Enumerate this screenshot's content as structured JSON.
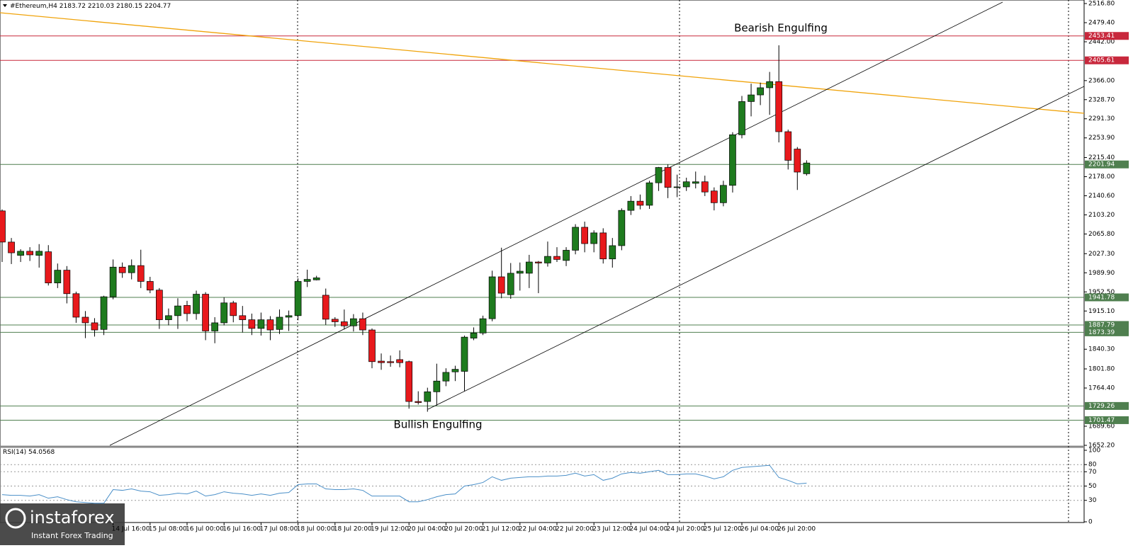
{
  "chart_data": [
    {
      "type": "candlestick",
      "symbol": "#Ethereum,H4",
      "ohlc": [
        [
          2111,
          2114,
          2011,
          2050
        ],
        [
          2050,
          2058,
          2007,
          2029
        ],
        [
          2024,
          2036,
          2011,
          2032
        ],
        [
          2032,
          2040,
          2013,
          2025
        ],
        [
          2024,
          2046,
          2000,
          2032
        ],
        [
          2031,
          2044,
          1965,
          1970
        ],
        [
          1970,
          2008,
          1960,
          1995
        ],
        [
          1995,
          2003,
          1930,
          1949
        ],
        [
          1949,
          1953,
          1892,
          1903
        ],
        [
          1903,
          1915,
          1862,
          1892
        ],
        [
          1892,
          1901,
          1865,
          1878
        ],
        [
          1879,
          1945,
          1868,
          1943
        ],
        [
          1943,
          2016,
          1938,
          2001
        ],
        [
          2001,
          2010,
          1980,
          1990
        ],
        [
          1990,
          2016,
          1977,
          2004
        ],
        [
          2004,
          2035,
          1960,
          1973
        ],
        [
          1973,
          1982,
          1950,
          1956
        ],
        [
          1956,
          1960,
          1880,
          1898
        ],
        [
          1898,
          1920,
          1887,
          1906
        ],
        [
          1906,
          1940,
          1880,
          1925
        ],
        [
          1926,
          1935,
          1895,
          1910
        ],
        [
          1910,
          1955,
          1898,
          1948
        ],
        [
          1948,
          1952,
          1858,
          1876
        ],
        [
          1876,
          1903,
          1852,
          1892
        ],
        [
          1892,
          1942,
          1887,
          1931
        ],
        [
          1931,
          1935,
          1893,
          1906
        ],
        [
          1906,
          1925,
          1873,
          1898
        ],
        [
          1898,
          1910,
          1868,
          1881
        ],
        [
          1881,
          1912,
          1867,
          1898
        ],
        [
          1898,
          1905,
          1858,
          1878
        ],
        [
          1879,
          1918,
          1870,
          1903
        ],
        [
          1903,
          1916,
          1876,
          1906
        ],
        [
          1906,
          1979,
          1897,
          1973
        ],
        [
          1973,
          1996,
          1962,
          1977
        ],
        [
          1976,
          1984,
          1975,
          1980
        ],
        [
          1946,
          1959,
          1888,
          1899
        ],
        [
          1899,
          1903,
          1884,
          1894
        ],
        [
          1894,
          1918,
          1879,
          1886
        ],
        [
          1886,
          1909,
          1875,
          1900
        ],
        [
          1900,
          1912,
          1868,
          1878
        ],
        [
          1878,
          1881,
          1803,
          1816
        ],
        [
          1817,
          1832,
          1800,
          1814
        ],
        [
          1816,
          1828,
          1806,
          1814
        ],
        [
          1820,
          1838,
          1805,
          1814
        ],
        [
          1816,
          1818,
          1724,
          1738
        ],
        [
          1738,
          1758,
          1732,
          1736
        ],
        [
          1738,
          1765,
          1718,
          1757
        ],
        [
          1757,
          1812,
          1730,
          1778
        ],
        [
          1778,
          1803,
          1768,
          1795
        ],
        [
          1796,
          1808,
          1778,
          1801
        ],
        [
          1797,
          1867,
          1758,
          1864
        ],
        [
          1862,
          1883,
          1858,
          1872
        ],
        [
          1872,
          1906,
          1868,
          1900
        ],
        [
          1900,
          1994,
          1895,
          1982
        ],
        [
          1982,
          2039,
          1940,
          1950
        ],
        [
          1947,
          2009,
          1939,
          1989
        ],
        [
          1989,
          2010,
          1955,
          1993
        ],
        [
          1989,
          2025,
          1960,
          2011
        ],
        [
          2011,
          2013,
          1950,
          2009
        ],
        [
          2009,
          2051,
          2002,
          2022
        ],
        [
          2022,
          2040,
          2011,
          2016
        ],
        [
          2014,
          2040,
          2003,
          2034
        ],
        [
          2034,
          2085,
          2026,
          2079
        ],
        [
          2079,
          2090,
          2030,
          2047
        ],
        [
          2047,
          2073,
          2030,
          2068
        ],
        [
          2068,
          2077,
          2008,
          2017
        ],
        [
          2017,
          2058,
          2000,
          2043
        ],
        [
          2043,
          2116,
          2034,
          2112
        ],
        [
          2112,
          2140,
          2103,
          2130
        ],
        [
          2130,
          2143,
          2114,
          2122
        ],
        [
          2122,
          2170,
          2115,
          2166
        ],
        [
          2166,
          2197,
          2150,
          2196
        ],
        [
          2196,
          2202,
          2136,
          2157
        ],
        [
          2158,
          2182,
          2138,
          2158
        ],
        [
          2158,
          2176,
          2150,
          2168
        ],
        [
          2165,
          2188,
          2155,
          2168
        ],
        [
          2168,
          2180,
          2140,
          2148
        ],
        [
          2150,
          2157,
          2112,
          2127
        ],
        [
          2127,
          2170,
          2120,
          2161
        ],
        [
          2161,
          2265,
          2147,
          2260
        ],
        [
          2260,
          2336,
          2253,
          2325
        ],
        [
          2325,
          2360,
          2296,
          2338
        ],
        [
          2338,
          2362,
          2318,
          2352
        ],
        [
          2352,
          2383,
          2299,
          2364
        ],
        [
          2364,
          2435,
          2245,
          2266
        ],
        [
          2266,
          2270,
          2192,
          2210
        ],
        [
          2232,
          2236,
          2152,
          2187
        ],
        [
          2183.72,
          2210.03,
          2180.15,
          2204.77
        ]
      ],
      "categories": [
        null,
        null,
        null,
        null,
        null,
        null,
        null,
        null,
        null,
        null,
        null,
        null,
        "14 Jul 16:00",
        null,
        null,
        null,
        "15 Jul 08:00",
        null,
        null,
        null,
        "16 Jul 00:00",
        null,
        null,
        null,
        "16 Jul 16:00",
        null,
        null,
        null,
        "17 Jul 08:00",
        null,
        null,
        null,
        "18 Jul 00:00",
        null,
        null,
        null,
        "18 Jul 20:00",
        null,
        null,
        null,
        "19 Jul 12:00",
        null,
        null,
        null,
        "20 Jul 04:00",
        null,
        null,
        null,
        "20 Jul 20:00",
        null,
        null,
        null,
        "21 Jul 12:00",
        null,
        null,
        null,
        "22 Jul 04:00",
        null,
        null,
        null,
        "22 Jul 20:00",
        null,
        null,
        null,
        "23 Jul 12:00",
        null,
        null,
        null,
        "24 Jul 04:00",
        null,
        null,
        null,
        "24 Jul 20:00",
        null,
        null,
        null,
        "25 Jul 12:00",
        null,
        null,
        null,
        "26 Jul 04:00",
        null,
        null,
        null,
        "26 Jul 20:00",
        null,
        null,
        null
      ],
      "up_color": "#1e7b1e",
      "down_color": "#e8191c",
      "ylim": [
        1652.2,
        2516.8
      ],
      "yticks": [
        {
          "value": 2516.8,
          "label": "2516.80"
        },
        {
          "value": 2479.4,
          "label": "2479.40"
        },
        {
          "value": 2442,
          "label": "2442.00"
        },
        {
          "value": 2366,
          "label": "2366.00"
        },
        {
          "value": 2328.7,
          "label": "2328.70"
        },
        {
          "value": 2291.3,
          "label": "2291.30"
        },
        {
          "value": 2253.9,
          "label": "2253.90"
        },
        {
          "value": 2215.4,
          "label": "2215.40"
        },
        {
          "value": 2178,
          "label": "2178.00"
        },
        {
          "value": 2140.6,
          "label": "2140.60"
        },
        {
          "value": 2103.2,
          "label": "2103.20"
        },
        {
          "value": 2065.8,
          "label": "2065.80"
        },
        {
          "value": 2027.3,
          "label": "2027.30"
        },
        {
          "value": 1989.9,
          "label": "1989.90"
        },
        {
          "value": 1952.5,
          "label": "1952.50"
        },
        {
          "value": 1915.1,
          "label": "1915.10"
        },
        {
          "value": 1840.3,
          "label": "1840.30"
        },
        {
          "value": 1801.8,
          "label": "1801.80"
        },
        {
          "value": 1764.4,
          "label": "1764.40"
        },
        {
          "value": 1689.6,
          "label": "1689.60"
        },
        {
          "value": 1652.2,
          "label": "1652.20"
        }
      ],
      "levels": [
        2453.41,
        2405.61,
        2201.94,
        1941.78,
        1887.79,
        1873.39,
        1729.26,
        1701.47
      ],
      "level_colors": [
        "#c8283c",
        "#c8283c",
        "#4f7f4f",
        "#4f7f4f",
        "#4f7f4f",
        "#4f7f4f",
        "#4f7f4f",
        "#4f7f4f"
      ],
      "annotations": [
        "Bearish Engulfing",
        "Bullish Engulfing"
      ]
    },
    {
      "type": "line",
      "name": "RSI(14)",
      "color": "#4a8fc8",
      "values": [
        38,
        37,
        37,
        36,
        38,
        33,
        35,
        31,
        28,
        27,
        26,
        26,
        45,
        44,
        46,
        43,
        42,
        37,
        38,
        40,
        39,
        43,
        36,
        38,
        42,
        40,
        39,
        37,
        39,
        37,
        40,
        41,
        52,
        53,
        53,
        46,
        45,
        45,
        46,
        44,
        36,
        36,
        36,
        36,
        28,
        28,
        31,
        35,
        38,
        39,
        50,
        52,
        55,
        63,
        58,
        61,
        62,
        63,
        63,
        64,
        64,
        65,
        68,
        64,
        66,
        58,
        61,
        67,
        69,
        68,
        70,
        72,
        66,
        66,
        67,
        67,
        64,
        60,
        63,
        72,
        76,
        77,
        78,
        79,
        62,
        58,
        53,
        54.0568
      ],
      "ylim": [
        0,
        100
      ],
      "yticks": [
        100,
        80,
        70,
        50,
        30,
        0
      ]
    }
  ],
  "logo": {
    "name": "instaforex",
    "tagline": "Instant Forex Trading"
  }
}
